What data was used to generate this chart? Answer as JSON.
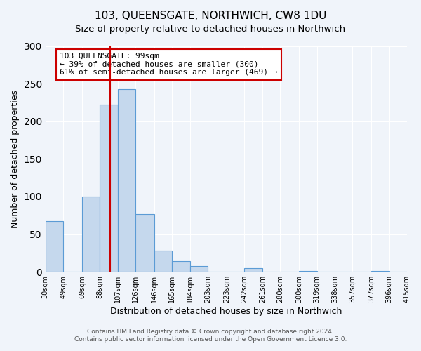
{
  "title": "103, QUEENSGATE, NORTHWICH, CW8 1DU",
  "subtitle": "Size of property relative to detached houses in Northwich",
  "xlabel": "Distribution of detached houses by size in Northwich",
  "ylabel": "Number of detached properties",
  "bar_color": "#c5d8ed",
  "bar_edge_color": "#5b9bd5",
  "background_color": "#f0f4fa",
  "grid_color": "#ffffff",
  "bin_edges": [
    30,
    49,
    69,
    88,
    107,
    126,
    146,
    165,
    184,
    203,
    223,
    242,
    261,
    280,
    300,
    319,
    338,
    357,
    377,
    396,
    415
  ],
  "bin_labels": [
    "30sqm",
    "49sqm",
    "69sqm",
    "88sqm",
    "107sqm",
    "126sqm",
    "146sqm",
    "165sqm",
    "184sqm",
    "203sqm",
    "223sqm",
    "242sqm",
    "261sqm",
    "280sqm",
    "300sqm",
    "319sqm",
    "338sqm",
    "357sqm",
    "377sqm",
    "396sqm",
    "415sqm"
  ],
  "counts": [
    67,
    0,
    100,
    222,
    243,
    77,
    28,
    14,
    8,
    0,
    0,
    5,
    0,
    0,
    1,
    0,
    0,
    0,
    1,
    0
  ],
  "ylim": [
    0,
    300
  ],
  "yticks": [
    0,
    50,
    100,
    150,
    200,
    250,
    300
  ],
  "property_size": 99,
  "property_label": "103 QUEENSGATE: 99sqm",
  "arrow_left_text": "← 39% of detached houses are smaller (300)",
  "arrow_right_text": "61% of semi-detached houses are larger (469) →",
  "annotation_box_color": "#ffffff",
  "annotation_box_edge_color": "#cc0000",
  "red_line_color": "#cc0000",
  "footer_line1": "Contains HM Land Registry data © Crown copyright and database right 2024.",
  "footer_line2": "Contains public sector information licensed under the Open Government Licence 3.0."
}
